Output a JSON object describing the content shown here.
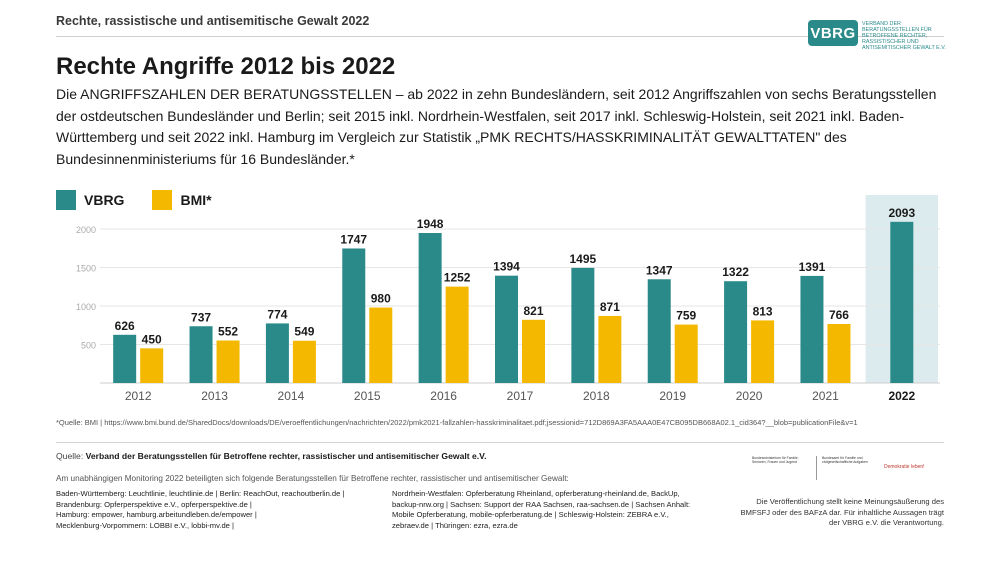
{
  "header": {
    "top_label": "Rechte, rassistische und antisemitische Gewalt 2022",
    "logo_text": "VBRG",
    "logo_subtext": "Verband der Beratungsstellen für Betroffene rechter, rassistischer und antisemitischer Gewalt e.V."
  },
  "title": "Rechte Angriffe 2012 bis 2022",
  "subtitle": "Die ANGRIFFSZAHLEN DER BERATUNGSSTELLEN – ab 2022 in zehn Bundesländern, seit 2012 Angriffszahlen von sechs Beratungsstellen der ostdeutschen Bundesländer und Berlin; seit 2015 inkl. Nordrhein-Westfalen, seit 2017 inkl. Schleswig-Holstein, seit 2021 inkl. Baden-Württemberg und seit 2022 inkl. Hamburg im Vergleich zur Statistik „PMK RECHTS/HASSKRIMINALITÄT GEWALTTATEN\" des Bundesinnenministeriums für 16 Bundesländer.*",
  "colors": {
    "vbrg": "#2a8a8a",
    "bmi": "#f5b800",
    "highlight": "#dcebed",
    "grid": "#e6e6e6"
  },
  "chart_data": {
    "type": "bar",
    "categories": [
      "2012",
      "2013",
      "2014",
      "2015",
      "2016",
      "2017",
      "2018",
      "2019",
      "2020",
      "2021",
      "2022"
    ],
    "series": [
      {
        "name": "VBRG",
        "values": [
          626,
          737,
          774,
          1747,
          1948,
          1394,
          1495,
          1347,
          1322,
          1391,
          2093
        ]
      },
      {
        "name": "BMI*",
        "values": [
          450,
          552,
          549,
          980,
          1252,
          821,
          871,
          759,
          813,
          766,
          null
        ]
      }
    ],
    "yticks": [
      "500",
      "1000",
      "1500",
      "2000"
    ],
    "ylim": [
      0,
      2000
    ],
    "highlight_category": "2022",
    "legend": "top-left",
    "grid": true
  },
  "footnote": "*Quelle: BMI | https://www.bmi.bund.de/SharedDocs/downloads/DE/veroeffentlichungen/nachrichten/2022/pmk2021-fallzahlen-hasskriminalitaet.pdf;jsessionid=712D869A3FA5AAA0E47CB095DB668A02.1_cid364?__blob=publicationFile&v=1",
  "source": {
    "label": "Quelle:",
    "text": "Verband der Beratungsstellen für Betroffene rechter, rassistischer und antisemitischer Gewalt e.V."
  },
  "monitoring_intro": "Am unabhängigen Monitoring 2022 beteiligten sich folgende Beratungsstellen für Betroffene rechter, rassistischer und antisemitischer Gewalt:",
  "monitoring_col1": [
    "Baden-Württemberg: Leuchtlinie, leuchtlinie.de | Berlin: ReachOut, reachoutberlin.de |",
    "Brandenburg: Opferperspektive e.V., opferperspektive.de |",
    "Hamburg: empower, hamburg.arbeitundleben.de/empower |",
    "Mecklenburg-Vorpommern: LOBBI e.V., lobbi-mv.de  |"
  ],
  "monitoring_col2": [
    "Nordrhein-Westfalen: Opferberatung Rheinland, opferberatung-rheinland.de, BackUp,",
    "backup-nrw.org | Sachsen: Support der RAA Sachsen, raa-sachsen.de | Sachsen Anhalt:",
    "Mobile Opferberatung, mobile-opferberatung.de | Schleswig-Holstein: ZEBRA e.V.,",
    "zebraev.de | Thüringen: ezra, ezra.de"
  ],
  "disclaimer": "Die Veröffentlichung stellt keine Meinungsäußerung des BMFSFJ oder des BAFzA dar. Für inhaltliche Aussagen trägt der VBRG e.V. die Verantwortung.",
  "funder_logos": [
    "Bundesministerium für Familie, Senioren, Frauen und Jugend",
    "Bundesamt für Familie und zivilgesellschaftliche Aufgaben",
    "Demokratie leben!"
  ]
}
